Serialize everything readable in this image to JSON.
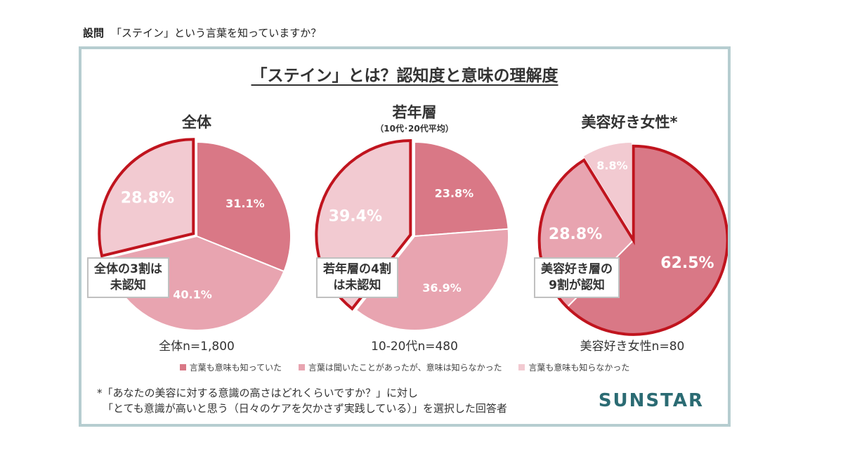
{
  "question": {
    "label": "設問",
    "text": "「ステイン」という言葉を知っていますか？"
  },
  "title": "「ステイン」とは？認知度と意味の理解度",
  "colors": {
    "know_meaning": "#d97886",
    "heard_only": "#e8a4b0",
    "never_heard": "#f2cad1",
    "highlight_border": "#c0141e",
    "frame": "#b6cdd0",
    "brand": "#2b6b73"
  },
  "chart_data": [
    {
      "type": "pie",
      "title": "全体",
      "subtitle": "",
      "n_label": "全体n=1,800",
      "callout": [
        "全体の3割は",
        "未認知"
      ],
      "slices": [
        {
          "label": "言葉も意味も知っていた",
          "value": 31.1,
          "display": "31.1%"
        },
        {
          "label": "言葉は聞いたことがあったが、意味は知らなかった",
          "value": 40.1,
          "display": "40.1%"
        },
        {
          "label": "言葉も意味も知らなかった",
          "value": 28.8,
          "display": "28.8%"
        }
      ],
      "highlight": 2
    },
    {
      "type": "pie",
      "title": "若年層",
      "subtitle": "（10代･20代平均）",
      "n_label": "10-20代n=480",
      "callout": [
        "若年層の4割",
        "は未認知"
      ],
      "slices": [
        {
          "label": "言葉も意味も知っていた",
          "value": 23.8,
          "display": "23.8%"
        },
        {
          "label": "言葉は聞いたことがあったが、意味は知らなかった",
          "value": 36.9,
          "display": "36.9%"
        },
        {
          "label": "言葉も意味も知らなかった",
          "value": 39.4,
          "display": "39.4%"
        }
      ],
      "highlight": 2
    },
    {
      "type": "pie",
      "title": "美容好き女性*",
      "subtitle": "",
      "n_label": "美容好き女性n=80",
      "callout": [
        "美容好き層の",
        "9割が認知"
      ],
      "slices": [
        {
          "label": "言葉も意味も知っていた",
          "value": 62.5,
          "display": "62.5%"
        },
        {
          "label": "言葉は聞いたことがあったが、意味は知らなかった",
          "value": 28.8,
          "display": "28.8%"
        },
        {
          "label": "言葉も意味も知らなかった",
          "value": 8.8,
          "display": "8.8%"
        }
      ],
      "highlight": [
        0,
        1
      ]
    }
  ],
  "legend": [
    "言葉も意味も知っていた",
    "言葉は聞いたことがあったが、意味は知らなかった",
    "言葉も意味も知らなかった"
  ],
  "footnote": [
    "*「あなたの美容に対する意識の高さはどれくらいですか？」に対し",
    "「とても意識が高いと思う（日々のケアを欠かさず実践している）」を選択した回答者"
  ],
  "brand": "SUNSTAR"
}
